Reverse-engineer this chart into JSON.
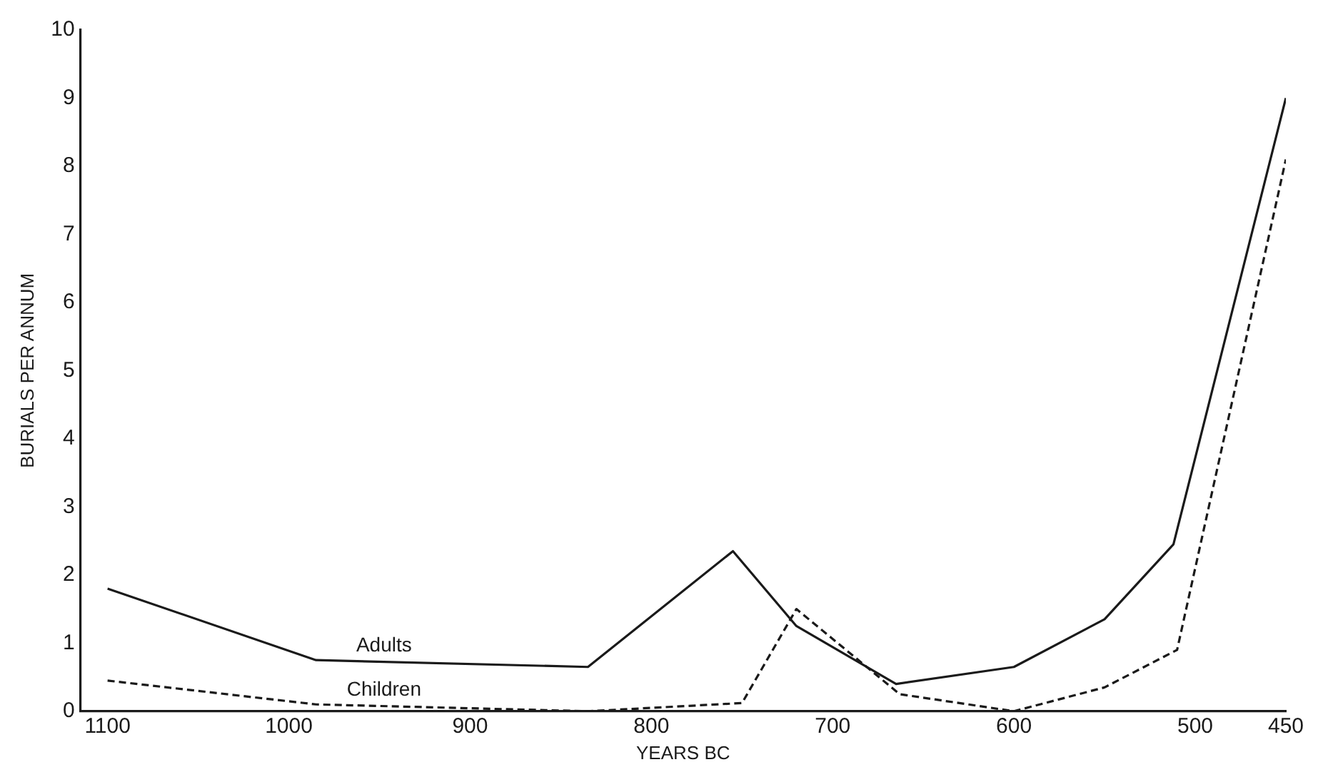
{
  "chart_data": {
    "type": "line",
    "xlabel": "YEARS BC",
    "ylabel": "BURIALS PER ANNUM",
    "xlim": [
      1115,
      450
    ],
    "xticks": [
      1100,
      1000,
      900,
      800,
      700,
      600,
      500,
      450
    ],
    "ylim": [
      0,
      10
    ],
    "yticks": [
      0,
      1,
      2,
      3,
      4,
      5,
      6,
      7,
      8,
      9,
      10
    ],
    "grid": false,
    "legend": false,
    "marker": "none",
    "series": [
      {
        "name": "Adults",
        "color": "#1a1a1a",
        "line_style": "solid",
        "x": [
          1100,
          985,
          835,
          755,
          720,
          665,
          600,
          550,
          512,
          450
        ],
        "values": [
          1.8,
          0.75,
          0.65,
          2.35,
          1.25,
          0.4,
          0.65,
          1.35,
          2.45,
          9
        ]
      },
      {
        "name": "Children",
        "color": "#1a1a1a",
        "line_style": "dashed",
        "x": [
          1100,
          985,
          835,
          750,
          720,
          663,
          600,
          550,
          510,
          450
        ],
        "values": [
          0.45,
          0.1,
          0,
          0.12,
          1.5,
          0.25,
          0,
          0.35,
          0.9,
          8.1
        ]
      }
    ]
  }
}
